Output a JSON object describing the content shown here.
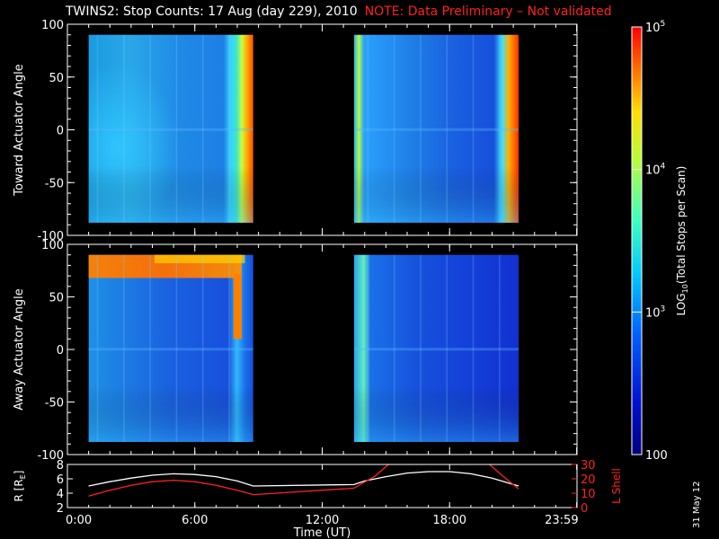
{
  "title": "TWINS2: Stop Counts: 17 Aug (day 229), 2010",
  "note": "NOTE: Data Preliminary – Not validated",
  "date_stamp": "31 May 12",
  "colors": {
    "note": "#ff2020",
    "axis": "#ffffff",
    "r_line": "#ffffff",
    "lshell_line": "#ff2020"
  },
  "chart_data": [
    {
      "type": "heatmap",
      "ylabel": "Toward Actuator Angle",
      "ylim": [
        -100,
        100
      ],
      "yticks": [
        -100,
        -50,
        0,
        50,
        100
      ],
      "xlim_hours": [
        0,
        24
      ],
      "data_segments_hours": [
        [
          1.0,
          8.75
        ],
        [
          13.5,
          21.25
        ]
      ],
      "yrange_data": [
        -88,
        90
      ]
    },
    {
      "type": "heatmap",
      "ylabel": "Away Actuator Angle",
      "ylim": [
        -100,
        100
      ],
      "yticks": [
        -100,
        -50,
        0,
        50,
        100
      ],
      "xlim_hours": [
        0,
        24
      ],
      "data_segments_hours": [
        [
          1.0,
          8.75
        ],
        [
          13.5,
          21.25
        ]
      ],
      "yrange_data": [
        -88,
        90
      ]
    },
    {
      "type": "line",
      "xlabel": "Time (UT)",
      "xticks": [
        "0:00",
        "6:00",
        "12:00",
        "18:00",
        "23:59"
      ],
      "xtick_hours": [
        0,
        6,
        12,
        18,
        23.983
      ],
      "left_axis": {
        "label": "R [R",
        "label_sub": "E",
        "label_end": "]",
        "ylim": [
          2,
          8
        ],
        "ticks": [
          "2",
          "4",
          "6",
          "8"
        ]
      },
      "right_axis": {
        "label": "L Shell",
        "ylim": [
          0,
          30
        ],
        "ticks": [
          "0",
          "10",
          "20",
          "30"
        ]
      },
      "series": [
        {
          "name": "R",
          "axis": "left",
          "x": [
            1,
            2,
            3,
            4,
            5,
            6,
            7,
            8,
            8.75,
            13.5,
            14,
            15,
            16,
            17,
            18,
            19,
            20,
            21.25
          ],
          "y": [
            5.0,
            5.6,
            6.1,
            6.5,
            6.7,
            6.6,
            6.3,
            5.7,
            5.0,
            5.2,
            5.7,
            6.3,
            6.8,
            7.0,
            7.0,
            6.7,
            6.1,
            5.0
          ]
        },
        {
          "name": "L Shell",
          "axis": "right",
          "x": [
            1,
            2,
            3,
            4,
            5,
            6,
            7,
            8,
            8.75,
            13.5,
            14.5,
            15.2,
            19.8,
            20.5,
            21.25
          ],
          "y": [
            8.0,
            12.0,
            15.5,
            18.0,
            19.0,
            18.0,
            15.5,
            12.0,
            9.0,
            13.5,
            22.0,
            31.0,
            31.0,
            22.0,
            13.0
          ]
        }
      ]
    }
  ],
  "colorbar": {
    "label_prefix": "LOG",
    "label_sub": "10",
    "label_rest": "(Total Stops per Scan)",
    "range": [
      100,
      100000
    ],
    "ticks": [
      {
        "value": 100,
        "label": "100",
        "sup": ""
      },
      {
        "value": 1000,
        "label": "10",
        "sup": "3"
      },
      {
        "value": 10000,
        "label": "10",
        "sup": "4"
      },
      {
        "value": 100000,
        "label": "10",
        "sup": "5"
      }
    ]
  }
}
